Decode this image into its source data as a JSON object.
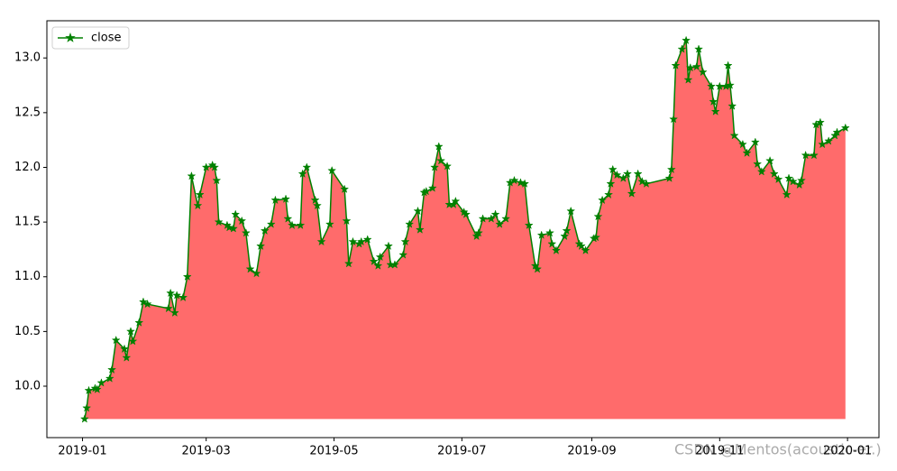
{
  "chart_data": {
    "type": "line",
    "x": [
      "2019-01-02",
      "2019-01-03",
      "2019-01-04",
      "2019-01-07",
      "2019-01-08",
      "2019-01-10",
      "2019-01-14",
      "2019-01-15",
      "2019-01-17",
      "2019-01-21",
      "2019-01-22",
      "2019-01-24",
      "2019-01-25",
      "2019-01-28",
      "2019-01-30",
      "2019-02-01",
      "2019-02-11",
      "2019-02-12",
      "2019-02-14",
      "2019-02-15",
      "2019-02-18",
      "2019-02-20",
      "2019-02-22",
      "2019-02-25",
      "2019-02-26",
      "2019-03-01",
      "2019-03-04",
      "2019-03-05",
      "2019-03-06",
      "2019-03-07",
      "2019-03-11",
      "2019-03-12",
      "2019-03-14",
      "2019-03-15",
      "2019-03-18",
      "2019-03-20",
      "2019-03-22",
      "2019-03-25",
      "2019-03-27",
      "2019-03-29",
      "2019-04-01",
      "2019-04-03",
      "2019-04-08",
      "2019-04-09",
      "2019-04-11",
      "2019-04-15",
      "2019-04-16",
      "2019-04-18",
      "2019-04-22",
      "2019-04-23",
      "2019-04-25",
      "2019-04-29",
      "2019-04-30",
      "2019-05-06",
      "2019-05-07",
      "2019-05-08",
      "2019-05-10",
      "2019-05-13",
      "2019-05-14",
      "2019-05-17",
      "2019-05-20",
      "2019-05-22",
      "2019-05-23",
      "2019-05-27",
      "2019-05-28",
      "2019-05-30",
      "2019-06-03",
      "2019-06-04",
      "2019-06-06",
      "2019-06-10",
      "2019-06-11",
      "2019-06-13",
      "2019-06-14",
      "2019-06-17",
      "2019-06-18",
      "2019-06-20",
      "2019-06-21",
      "2019-06-24",
      "2019-06-25",
      "2019-06-27",
      "2019-06-28",
      "2019-07-02",
      "2019-07-03",
      "2019-07-08",
      "2019-07-09",
      "2019-07-11",
      "2019-07-15",
      "2019-07-17",
      "2019-07-19",
      "2019-07-22",
      "2019-07-24",
      "2019-07-26",
      "2019-07-29",
      "2019-07-31",
      "2019-08-02",
      "2019-08-05",
      "2019-08-06",
      "2019-08-08",
      "2019-08-12",
      "2019-08-13",
      "2019-08-15",
      "2019-08-19",
      "2019-08-20",
      "2019-08-22",
      "2019-08-26",
      "2019-08-27",
      "2019-08-29",
      "2019-09-02",
      "2019-09-03",
      "2019-09-04",
      "2019-09-06",
      "2019-09-09",
      "2019-09-10",
      "2019-09-11",
      "2019-09-13",
      "2019-09-16",
      "2019-09-18",
      "2019-09-20",
      "2019-09-23",
      "2019-09-25",
      "2019-09-27",
      "2019-10-08",
      "2019-10-09",
      "2019-10-10",
      "2019-10-11",
      "2019-10-14",
      "2019-10-16",
      "2019-10-17",
      "2019-10-18",
      "2019-10-21",
      "2019-10-22",
      "2019-10-24",
      "2019-10-28",
      "2019-10-29",
      "2019-10-30",
      "2019-11-01",
      "2019-11-04",
      "2019-11-05",
      "2019-11-06",
      "2019-11-07",
      "2019-11-08",
      "2019-11-12",
      "2019-11-14",
      "2019-11-18",
      "2019-11-19",
      "2019-11-21",
      "2019-11-25",
      "2019-11-27",
      "2019-11-29",
      "2019-12-03",
      "2019-12-04",
      "2019-12-06",
      "2019-12-09",
      "2019-12-10",
      "2019-12-12",
      "2019-12-16",
      "2019-12-17",
      "2019-12-19",
      "2019-12-20",
      "2019-12-23",
      "2019-12-26",
      "2019-12-27",
      "2019-12-31"
    ],
    "series": [
      {
        "name": "close",
        "color": "#008000",
        "fill_color": "#ff6b6b",
        "values": [
          9.7,
          9.8,
          9.96,
          9.98,
          9.97,
          10.03,
          10.07,
          10.15,
          10.42,
          10.34,
          10.26,
          10.5,
          10.41,
          10.58,
          10.77,
          10.75,
          10.71,
          10.85,
          10.67,
          10.83,
          10.81,
          11.0,
          11.92,
          11.65,
          11.75,
          12.0,
          12.02,
          12.0,
          11.88,
          11.5,
          11.47,
          11.45,
          11.44,
          11.57,
          11.51,
          11.4,
          11.07,
          11.03,
          11.28,
          11.42,
          11.48,
          11.7,
          11.71,
          11.53,
          11.47,
          11.47,
          11.94,
          12.0,
          11.7,
          11.65,
          11.32,
          11.48,
          11.97,
          11.8,
          11.51,
          11.12,
          11.32,
          11.3,
          11.32,
          11.34,
          11.14,
          11.1,
          11.18,
          11.28,
          11.11,
          11.11,
          11.2,
          11.32,
          11.48,
          11.6,
          11.43,
          11.77,
          11.78,
          11.81,
          12.0,
          12.19,
          12.06,
          12.01,
          11.66,
          11.66,
          11.69,
          11.59,
          11.57,
          11.37,
          11.4,
          11.53,
          11.53,
          11.57,
          11.48,
          11.53,
          11.86,
          11.88,
          11.86,
          11.85,
          11.47,
          11.1,
          11.07,
          11.38,
          11.4,
          11.3,
          11.24,
          11.37,
          11.42,
          11.6,
          11.3,
          11.28,
          11.24,
          11.35,
          11.36,
          11.55,
          11.7,
          11.75,
          11.85,
          11.98,
          11.93,
          11.9,
          11.94,
          11.76,
          11.94,
          11.87,
          11.85,
          11.9,
          11.98,
          12.44,
          12.93,
          13.08,
          13.16,
          12.8,
          12.91,
          12.92,
          13.08,
          12.87,
          12.74,
          12.6,
          12.51,
          12.74,
          12.74,
          12.93,
          12.75,
          12.56,
          12.29,
          12.21,
          12.13,
          12.23,
          12.03,
          11.96,
          12.06,
          11.94,
          11.89,
          11.75,
          11.9,
          11.87,
          11.84,
          11.88,
          12.11,
          12.11,
          12.39,
          12.41,
          12.21,
          12.24,
          12.29,
          12.32,
          12.36
        ]
      }
    ],
    "xlim": [
      "2018-12-15",
      "2020-01-16"
    ],
    "xticks": [
      {
        "value": "2019-01-01",
        "label": "2019-01"
      },
      {
        "value": "2019-03-01",
        "label": "2019-03"
      },
      {
        "value": "2019-05-01",
        "label": "2019-05"
      },
      {
        "value": "2019-07-01",
        "label": "2019-07"
      },
      {
        "value": "2019-09-01",
        "label": "2019-09"
      },
      {
        "value": "2019-11-01",
        "label": "2019-11"
      },
      {
        "value": "2020-01-01",
        "label": "2020-01"
      }
    ],
    "ylim": [
      9.53,
      13.34
    ],
    "yticks": [
      {
        "value": 10,
        "label": "10.0"
      },
      10.5,
      {
        "value": 11,
        "label": "11.0"
      },
      11.5,
      {
        "value": 12,
        "label": "12.0"
      },
      12.5,
      {
        "value": 13,
        "label": "13.0"
      }
    ],
    "grid": false,
    "legend": "upper left",
    "watermark": "CSDN @Mentos(acoustic-er.)"
  }
}
